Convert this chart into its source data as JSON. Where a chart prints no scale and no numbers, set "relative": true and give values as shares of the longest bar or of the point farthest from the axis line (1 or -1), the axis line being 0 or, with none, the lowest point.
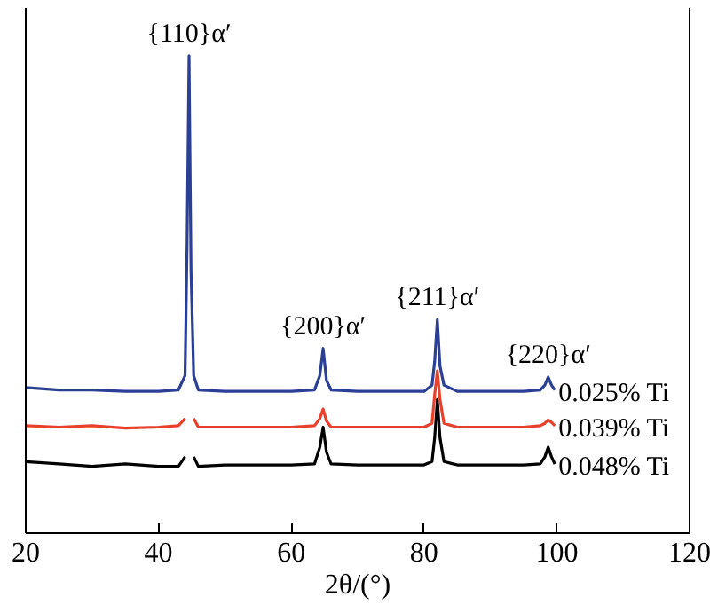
{
  "chart_data": {
    "type": "line",
    "relative": true,
    "xlabel": "2θ/(°)",
    "xlim": [
      20,
      120
    ],
    "xticks": [
      20,
      40,
      60,
      80,
      100,
      120
    ],
    "grid": false,
    "x": [
      20,
      25,
      30,
      35,
      40,
      43,
      44,
      44.3,
      44.6,
      44.9,
      45.3,
      46,
      50,
      55,
      60,
      63.5,
      64.3,
      64.8,
      65.3,
      66,
      70,
      75,
      80,
      81.2,
      81.6,
      82.0,
      82.4,
      83,
      85,
      90,
      95,
      97.5,
      98.2,
      98.7,
      99.2,
      99.7
    ],
    "series": [
      {
        "name": "0.048% Ti",
        "color": "#000000",
        "values": [
          0.15,
          0.145,
          0.14,
          0.145,
          0.14,
          0.14,
          0.16,
          null,
          null,
          null,
          0.16,
          0.14,
          0.143,
          0.143,
          0.143,
          0.145,
          0.18,
          0.222,
          0.17,
          0.145,
          0.143,
          0.143,
          0.143,
          0.15,
          0.2,
          0.28,
          0.2,
          0.15,
          0.143,
          0.143,
          0.143,
          0.145,
          0.16,
          0.18,
          0.16,
          0.145
        ]
      },
      {
        "name": "0.039% Ti",
        "color": "#e8402a",
        "values": [
          0.225,
          0.222,
          0.225,
          0.22,
          0.222,
          0.225,
          0.24,
          null,
          null,
          null,
          0.24,
          0.222,
          0.222,
          0.222,
          0.222,
          0.225,
          0.24,
          0.26,
          0.235,
          0.222,
          0.222,
          0.222,
          0.222,
          0.23,
          0.29,
          0.34,
          0.28,
          0.23,
          0.222,
          0.222,
          0.222,
          0.225,
          0.23,
          0.237,
          0.232,
          0.225
        ]
      },
      {
        "name": "0.025% Ti",
        "color": "#2b3f94",
        "values": [
          0.305,
          0.3,
          0.3,
          0.297,
          0.297,
          0.3,
          0.33,
          0.6,
          1.0,
          0.55,
          0.33,
          0.3,
          0.297,
          0.297,
          0.297,
          0.3,
          0.33,
          0.387,
          0.32,
          0.3,
          0.297,
          0.297,
          0.297,
          0.31,
          0.36,
          0.447,
          0.35,
          0.31,
          0.297,
          0.297,
          0.297,
          0.3,
          0.31,
          0.327,
          0.31,
          0.3
        ]
      }
    ],
    "annotations": [
      {
        "text": "{110}α′",
        "x": 44.6,
        "y": 1.0
      },
      {
        "text": "{200}α′",
        "x": 64.8,
        "y": 0.387
      },
      {
        "text": "{211}α′",
        "x": 82.0,
        "y": 0.447
      },
      {
        "text": "{220}α′",
        "x": 98.7,
        "y": 0.327
      }
    ]
  }
}
